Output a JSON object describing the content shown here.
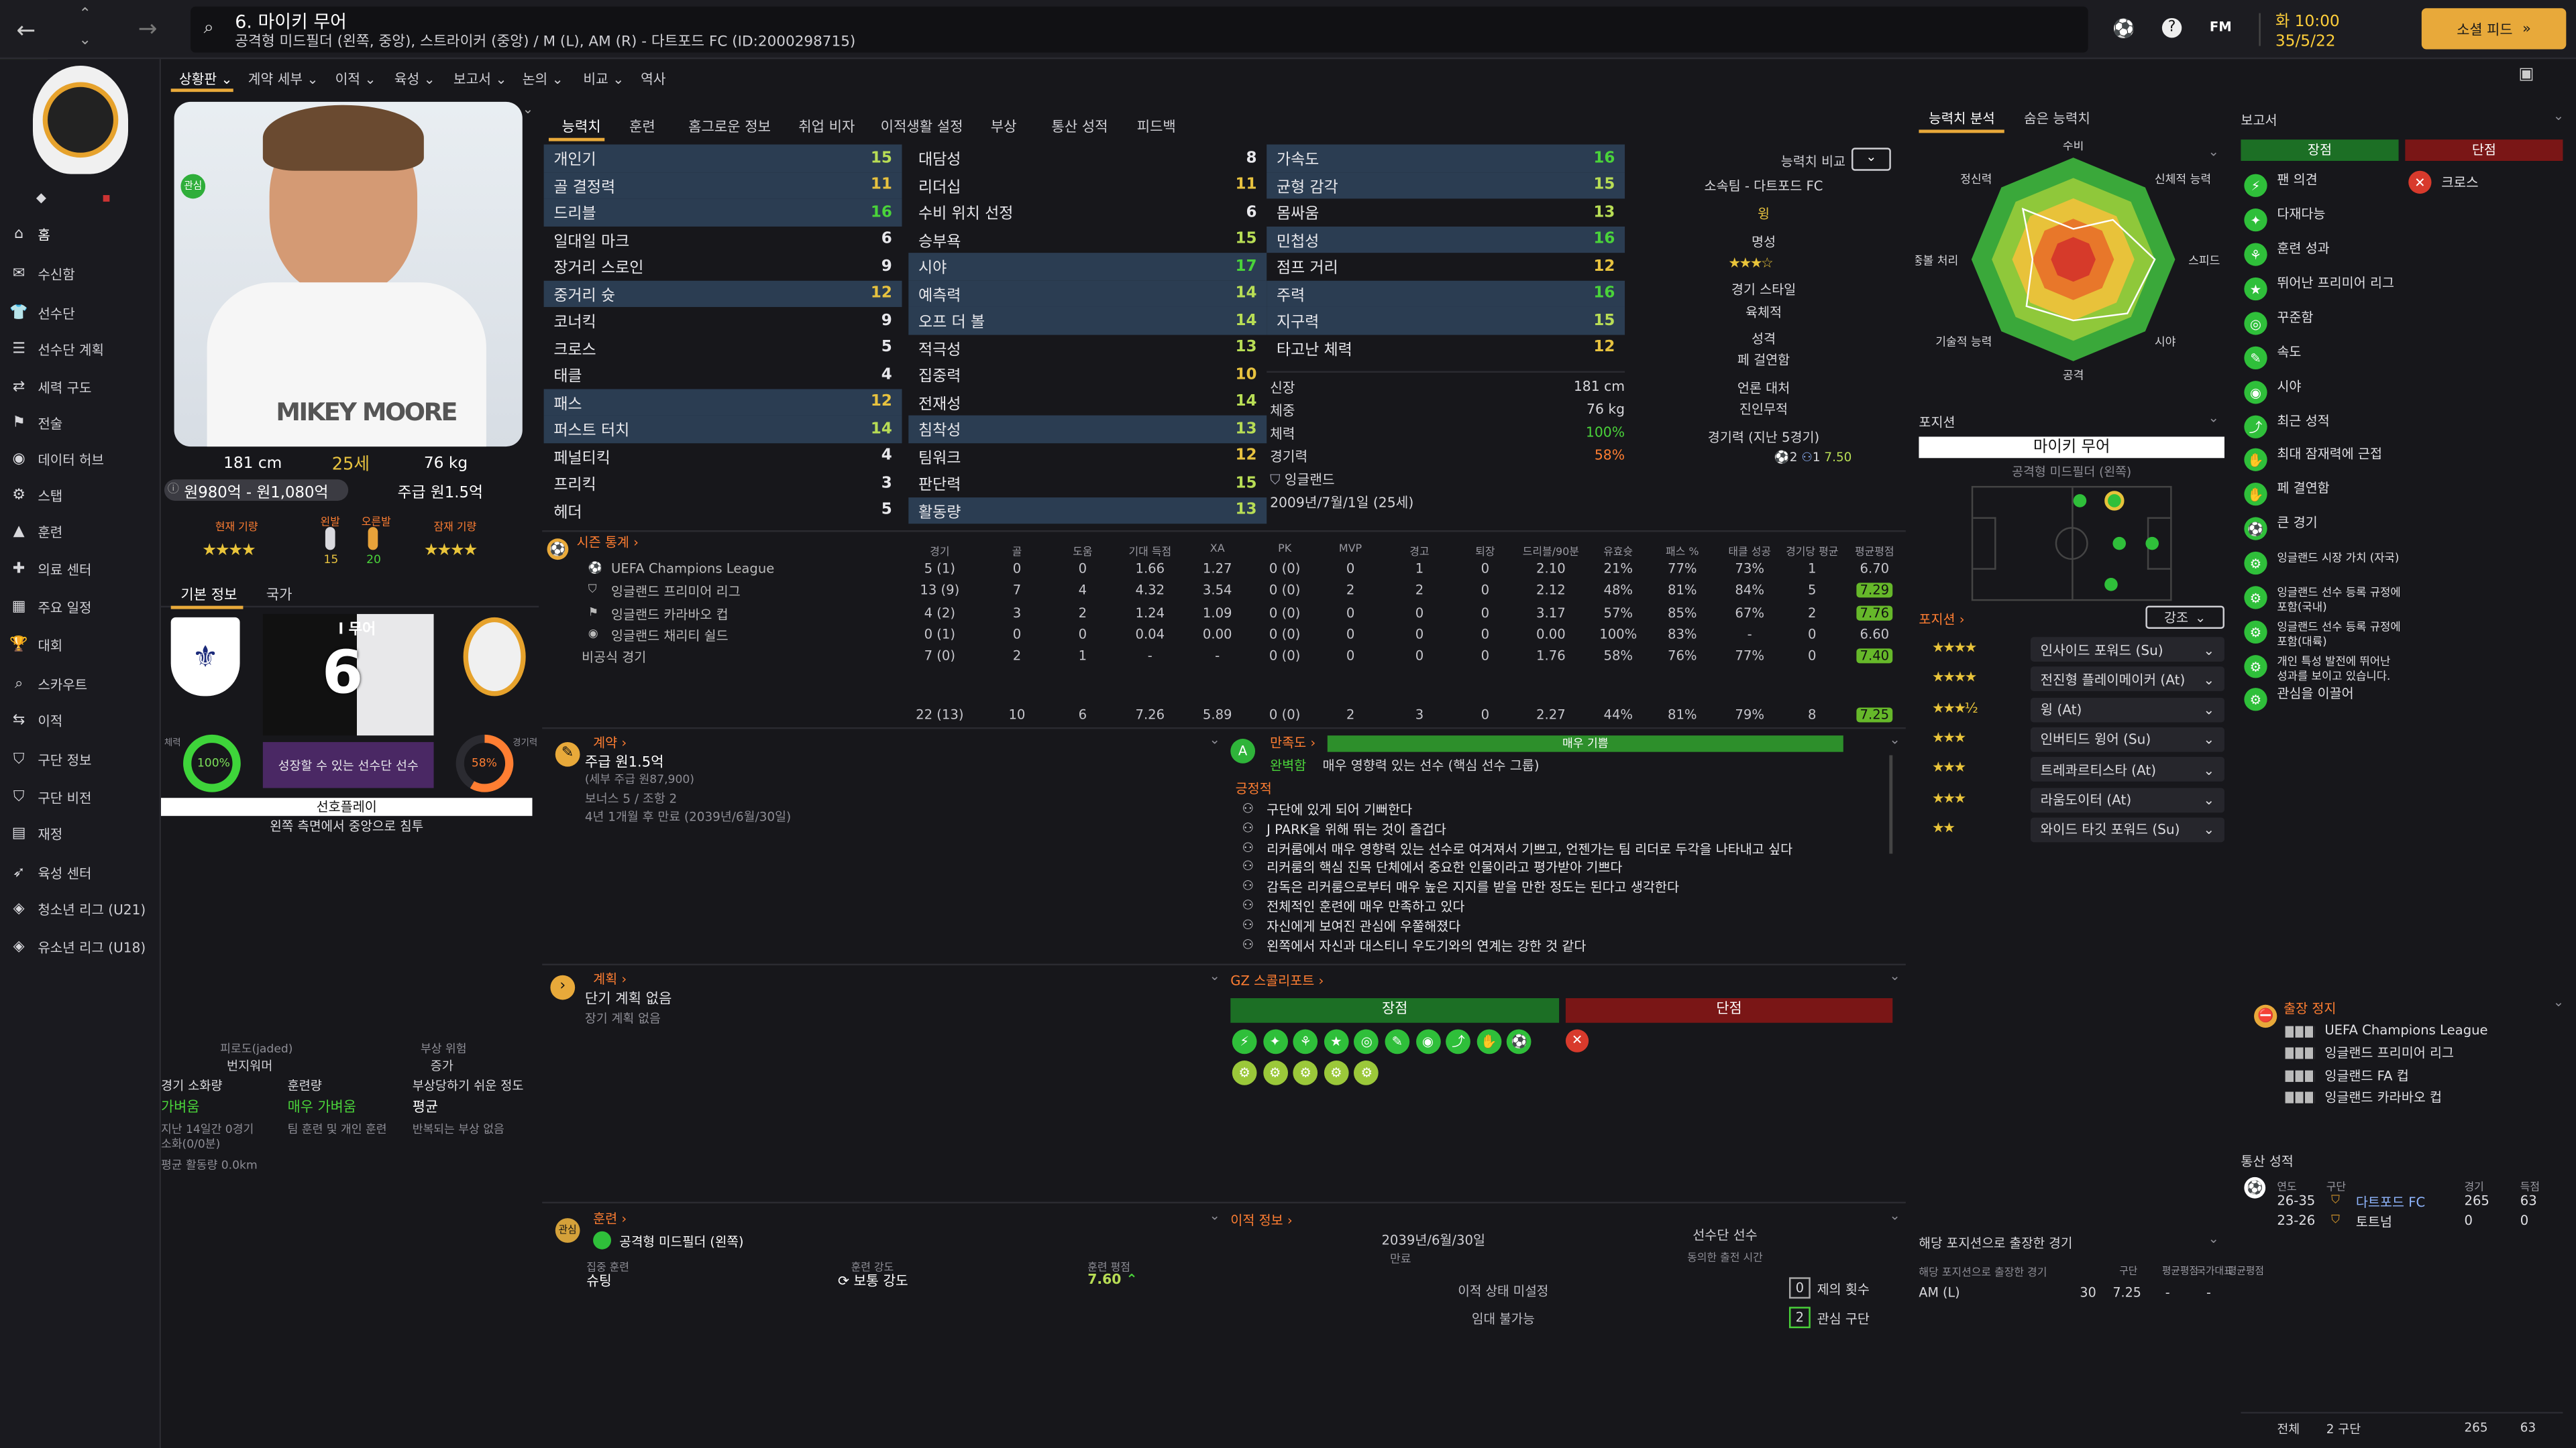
{
  "header": {
    "title": "6. 마이키 무어",
    "subtitle": "공격형 미드필더 (왼쪽, 중앙), 스트라이커 (중앙) / M (L), AM (R) - 다트포드 FC (ID:2000298715)",
    "time": "화 10:00",
    "date": "35/5/22",
    "social_button": "소셜 피드",
    "fm": "FM"
  },
  "sidebar": {
    "items": [
      "홈",
      "수신함",
      "선수단",
      "선수단 계획",
      "세력 구도",
      "전술",
      "데이터 허브",
      "스탭",
      "훈련",
      "의료 센터",
      "주요 일정",
      "대회",
      "스카우트",
      "이적",
      "구단 정보",
      "구단 비전",
      "재정",
      "육성 센터",
      "청소년 리그 (U21)",
      "유소년 리그 (U18)"
    ]
  },
  "menu": [
    "상황판",
    "계약 세부",
    "이적",
    "육성",
    "보고서",
    "논의",
    "비교",
    "역사"
  ],
  "tabs": [
    "능력치",
    "훈련",
    "홈그로운 정보",
    "취업 비자",
    "이적생활 설정",
    "부상",
    "통산 성적",
    "피드백"
  ],
  "profile": {
    "height": "181 cm",
    "age": "25세",
    "weight": "76 kg",
    "value": "원980억 - 원1,080억",
    "wage": "주급 원1.5억",
    "current_label": "현재 기량",
    "potential_label": "잠재 기량",
    "left_foot": "왼발",
    "right_foot": "오른발",
    "left_val": "15",
    "right_val": "20",
    "tab1": "기본 정보",
    "tab2": "국가",
    "shirt_name": "l 무어",
    "shirt_num": "6",
    "fit": "100%",
    "fit_label": "체력",
    "sharp": "58%",
    "sharp_label": "경기력",
    "growth": "성장할 수 있는 선수단 선수",
    "role": "선호플레이",
    "role_desc": "왼쪽 측면에서 중앙으로 침투",
    "badge": "관심",
    "photo_name": "MIKEY MOORE"
  },
  "attrs1": [
    [
      "개인기",
      "15"
    ],
    [
      "골 결정력",
      "11"
    ],
    [
      "드리블",
      "16"
    ],
    [
      "일대일 마크",
      "6"
    ],
    [
      "장거리 스로인",
      "9"
    ],
    [
      "중거리 슛",
      "12"
    ],
    [
      "코너킥",
      "9"
    ],
    [
      "크로스",
      "5"
    ],
    [
      "태클",
      "4"
    ],
    [
      "패스",
      "12"
    ],
    [
      "퍼스트 터치",
      "14"
    ],
    [
      "페널티킥",
      "4"
    ],
    [
      "프리킥",
      "3"
    ],
    [
      "헤더",
      "5"
    ]
  ],
  "attrs2": [
    [
      "대담성",
      "8"
    ],
    [
      "리더십",
      "11"
    ],
    [
      "수비 위치 선정",
      "6"
    ],
    [
      "승부욕",
      "15"
    ],
    [
      "시야",
      "17"
    ],
    [
      "예측력",
      "14"
    ],
    [
      "오프 더 볼",
      "14"
    ],
    [
      "적극성",
      "13"
    ],
    [
      "집중력",
      "10"
    ],
    [
      "전재성",
      "14"
    ],
    [
      "침착성",
      "13"
    ],
    [
      "팀워크",
      "12"
    ],
    [
      "판단력",
      "15"
    ],
    [
      "활동량",
      "13"
    ]
  ],
  "attrs3": [
    [
      "가속도",
      "16"
    ],
    [
      "균형 감각",
      "15"
    ],
    [
      "몸싸움",
      "13"
    ],
    [
      "민첩성",
      "16"
    ],
    [
      "점프 거리",
      "12"
    ],
    [
      "주력",
      "16"
    ],
    [
      "지구력",
      "15"
    ],
    [
      "타고난 체력",
      "12"
    ]
  ],
  "info": {
    "height_label": "신장",
    "height": "181 cm",
    "weight_label": "체중",
    "weight": "76 kg",
    "fit_label": "체력",
    "fit": "100%",
    "sharp_label": "경기력",
    "sharp": "58%",
    "nation": "잉글랜드",
    "birth": "2009년/7월/1일 (25세)"
  },
  "compare": {
    "label": "능력치 비교",
    "club": "소속팀 - 다트포드 FC",
    "role": "윙",
    "fame_label": "명성",
    "style_label": "경기 스타일",
    "style": "육체적",
    "personality_label": "성격",
    "personality": "페 걸연함",
    "media_label": "언론 대처",
    "media": "진인무적",
    "form_label": "경기력 (지난 5경기)",
    "form_goals": "2",
    "form_assists": "1",
    "form_rating": "7.50"
  },
  "season": {
    "title": "시즌 통계",
    "cols": [
      "경기",
      "골",
      "도움",
      "기대 득점",
      "XA",
      "PK",
      "MVP",
      "경고",
      "퇴장",
      "드리블/90분",
      "유효슛",
      "패스 %",
      "태클 성공",
      "경기당 평균",
      "평균평점"
    ],
    "rows": [
      [
        "UEFA Champions League",
        "5 (1)",
        "0",
        "0",
        "1.66",
        "1.27",
        "0 (0)",
        "0",
        "1",
        "0",
        "2.10",
        "21%",
        "77%",
        "73%",
        "1",
        "6.70"
      ],
      [
        "잉글랜드 프리미어 리그",
        "13 (9)",
        "7",
        "4",
        "4.32",
        "3.54",
        "0 (0)",
        "2",
        "2",
        "0",
        "2.12",
        "48%",
        "81%",
        "84%",
        "5",
        "7.29"
      ],
      [
        "잉글랜드 카라바오 컵",
        "4 (2)",
        "3",
        "2",
        "1.24",
        "1.09",
        "0 (0)",
        "0",
        "0",
        "0",
        "3.17",
        "57%",
        "85%",
        "67%",
        "2",
        "7.76"
      ],
      [
        "잉글랜드 채리티 쉴드",
        "0 (1)",
        "0",
        "0",
        "0.04",
        "0.00",
        "0 (0)",
        "0",
        "0",
        "0",
        "0.00",
        "100%",
        "83%",
        "-",
        "0",
        "6.60"
      ],
      [
        "비공식 경기",
        "7 (0)",
        "2",
        "1",
        "-",
        "-",
        "0 (0)",
        "0",
        "0",
        "0",
        "1.76",
        "58%",
        "76%",
        "77%",
        "0",
        "7.40"
      ]
    ],
    "total": [
      "22 (13)",
      "10",
      "6",
      "7.26",
      "5.89",
      "0 (0)",
      "2",
      "3",
      "0",
      "2.27",
      "44%",
      "81%",
      "79%",
      "8",
      "7.25"
    ]
  },
  "contract": {
    "title": "계약",
    "wage": "주급 원1.5억",
    "note": "(세부 주급 원87,900)",
    "bonus": "보너스 5 / 조항 2",
    "expiry": "4년 1개월 후 만료 (2039년/6월/30일)"
  },
  "happiness": {
    "title": "만족도",
    "level": "매우 기쁨",
    "sub_label": "완벽함",
    "sub": "매우 영향력 있는 선수 (핵심 선수 그룹)",
    "positive_label": "긍정적",
    "items": [
      "구단에 있게 되어 기뻐한다",
      "J PARK을 위해 뛰는 것이 즐겁다",
      "리커룸에서 매우 영향력 있는 선수로 여겨져서 기쁘고, 언젠가는 팀 리더로 두각을 나타내고 싶다",
      "리커룸의 핵심 진목 단체에서 중요한 인물이라고 평가받아 기쁘다",
      "감독은 리커룸으로부터 매우 높은 지지를 받을 만한 정도는 된다고 생각한다",
      "전체적인 훈련에 매우 만족하고 있다",
      "자신에게 보여진 관심에 우쭐해졌다",
      "왼쪽에서 자신과 대스티니 우도기와의 연계는 강한 것 같다"
    ]
  },
  "plans": {
    "title": "계획",
    "short": "단기 계획 없음",
    "long": "장기 계획 없음"
  },
  "scout": {
    "title": "GZ 스콜리포트",
    "pros": "장점",
    "cons": "단점"
  },
  "fatigue": {
    "label1": "피로도(jaded)",
    "val1": "번지워머",
    "label2": "부상 위험",
    "val2": "증가",
    "col1": "경기 소화량",
    "col1v": "가벼움",
    "col2": "훈련량",
    "col2v": "매우 가벼움",
    "col3": "부상당하기 쉬운 정도",
    "col3v": "평균",
    "n1": "지난 14일간 0경기",
    "n1b": "소화(0/0분)",
    "n2": "팀 훈련 및 개인 훈련",
    "n3": "반복되는 부상 없음",
    "run": "평균 활동량 0.0km"
  },
  "training": {
    "title": "훈련",
    "pos": "공격형 미드필더 (왼쪽)",
    "focus_label": "집중 훈련",
    "focus": "슈팅",
    "intensity_label": "훈련 강도",
    "intensity": "보통 강도",
    "rating_label": "훈련 평점",
    "rating": "7.60",
    "badge": "관심"
  },
  "transfer": {
    "title": "이적 정보",
    "date": "2039년/6월/30일",
    "date_label": "만료",
    "squad": "선수단 선수",
    "squad_label": "동의한 출전 시간",
    "status_label": "이적 상태 미설정",
    "loan_label": "임대 불가능",
    "offers": "0",
    "offers_label": "제의 횟수",
    "clubs": "2",
    "clubs_label": "관심 구단"
  },
  "ability": {
    "tab1": "능력치 분석",
    "tab2": "숨은 능력치",
    "labels": [
      "수비",
      "신체적 능력",
      "스피드",
      "시야",
      "공격",
      "기술적 능력",
      "공중볼 처리",
      "정신력"
    ],
    "values": [
      0.3,
      0.55,
      0.8,
      0.75,
      0.6,
      0.65,
      0.4,
      0.7
    ]
  },
  "positions": {
    "title": "포지션",
    "name": "마이키 무어",
    "role": "공격형 미드필더 (왼쪽)",
    "pos_label": "포지션",
    "highlight": "강조",
    "roles": [
      [
        "인사이드 포워드 (Su)",
        "4"
      ],
      [
        "전진형 플레이메이커 (At)",
        "4"
      ],
      [
        "윙 (At)",
        "3.5"
      ],
      [
        "인버티드 윙어 (Su)",
        "3"
      ],
      [
        "트레콰르티스타 (At)",
        "3"
      ],
      [
        "라움도이터 (At)",
        "3"
      ],
      [
        "와이드 타깃 포워드 (Su)",
        "2"
      ]
    ]
  },
  "position_apps": {
    "title": "해당 포지션으로 출장한 경기",
    "sub": "해당 포지션으로 출장한 경기",
    "cols": [
      "구단",
      "평균평점",
      "국가대표",
      "평균평점"
    ],
    "row": [
      "AM (L)",
      "30",
      "7.25",
      "-",
      "-"
    ]
  },
  "report": {
    "title": "보고서",
    "pros": "장점",
    "cons": "단점",
    "pro_items": [
      "팬 의견",
      "다재다능",
      "훈련 성과",
      "뛰어난 프리미어 리그",
      "꾸준함",
      "속도",
      "시야",
      "최근 성적",
      "최대 잠재력에 근접",
      "페 결연함",
      "큰 경기",
      "잉글랜드 시장 가치 (자국)",
      "잉글랜드 선수 등록 규정에 포함(국내)",
      "잉글랜드 선수 등록 규정에 포함(대륙)",
      "개인 특성 발전에 뛰어난 성과를 보이고 있습니다.",
      "관심을 이끌어"
    ],
    "con_items": [
      "크로스"
    ]
  },
  "suspension": {
    "title": "출장 정지",
    "items": [
      "UEFA Champions League",
      "잉글랜드 프리미어 리그",
      "잉글랜드 FA 컵",
      "잉글랜드 카라바오 컵"
    ]
  },
  "career": {
    "title": "통산 성적",
    "cols": [
      "연도",
      "구단",
      "경기",
      "득점"
    ],
    "rows": [
      [
        "26-35",
        "다트포드 FC",
        "265",
        "63"
      ],
      [
        "23-26",
        "토트넘",
        "0",
        "0"
      ]
    ],
    "total_label": "전체",
    "total_clubs": "2 구단",
    "total_apps": "265",
    "total_goals": "63"
  }
}
